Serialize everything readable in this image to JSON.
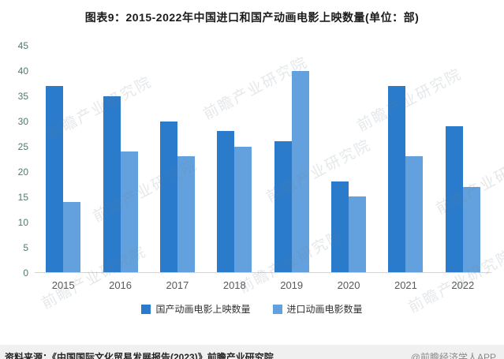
{
  "chart_data": {
    "type": "bar",
    "title": "图表9：2015-2022年中国进口和国产动画电影上映数量(单位：部)",
    "categories": [
      "2015",
      "2016",
      "2017",
      "2018",
      "2019",
      "2020",
      "2021",
      "2022"
    ],
    "series": [
      {
        "name": "国产动画电影上映数量",
        "color": "#2A7BCB",
        "values": [
          37,
          35,
          30,
          28,
          26,
          18,
          37,
          29
        ]
      },
      {
        "name": "进口动画电影数量",
        "color": "#63A1DE",
        "values": [
          14,
          24,
          23,
          25,
          40,
          15,
          23,
          17
        ]
      }
    ],
    "ylim": [
      0,
      45
    ],
    "ytick_step": 5,
    "grid": false,
    "legend_position": "bottom",
    "ytick_color": "#4E7A6C",
    "xtick_color": "#595959",
    "axis_line_color": "#d4d4d4"
  },
  "watermark": {
    "text": "前瞻产业研究院"
  },
  "footer": {
    "source": "资料来源：《中国国际文化贸易发展报告(2023)》前瞻产业研究院",
    "attribution": "@前瞻经济学人APP"
  }
}
